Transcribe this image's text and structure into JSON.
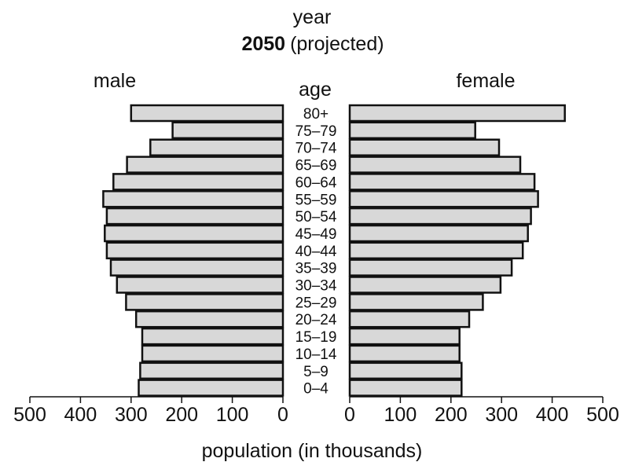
{
  "chart_data": {
    "type": "bar",
    "orientation": "horizontal",
    "layout": "population-pyramid",
    "header": {
      "line1": "year",
      "year": "2050",
      "note": "(projected)"
    },
    "category_label": "age",
    "xlabel": "population (in thousands)",
    "xlim": [
      0,
      500
    ],
    "xticks": [
      0,
      100,
      200,
      300,
      400,
      500
    ],
    "categories": [
      "80+",
      "75–79",
      "70–74",
      "65–69",
      "60–64",
      "55–59",
      "50–54",
      "45–49",
      "40–44",
      "35–39",
      "30–34",
      "25–29",
      "20–24",
      "15–19",
      "10–14",
      "5–9",
      "0–4"
    ],
    "series": [
      {
        "name": "male",
        "side": "left",
        "values": [
          300,
          218,
          262,
          308,
          335,
          355,
          348,
          352,
          348,
          340,
          328,
          310,
          290,
          278,
          278,
          282,
          285
        ]
      },
      {
        "name": "female",
        "side": "right",
        "values": [
          425,
          248,
          295,
          337,
          365,
          372,
          358,
          352,
          342,
          320,
          298,
          263,
          236,
          217,
          217,
          221,
          221
        ]
      }
    ],
    "bar_color": "#d8d8d8",
    "outline_color": "#111111"
  }
}
